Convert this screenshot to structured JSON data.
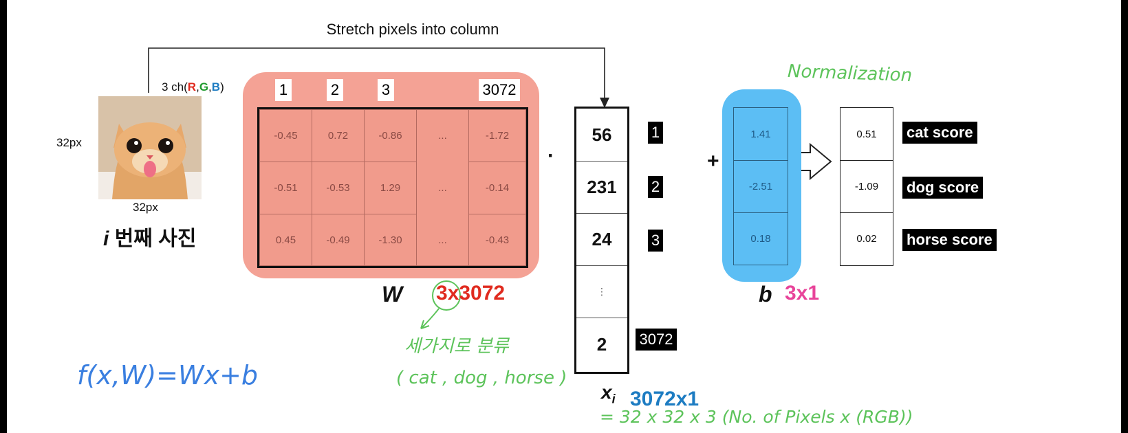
{
  "title": "Stretch pixels into column",
  "image": {
    "channels_prefix": "3 ch(",
    "ch_r": "R",
    "ch_g": "G",
    "ch_b": "B",
    "channels_suffix": ")",
    "height_label": "32px",
    "width_label": "32px",
    "caption_i": "i",
    "caption_text": "번째 사진"
  },
  "weights": {
    "col_labels": [
      "1",
      "2",
      "3",
      "3072"
    ],
    "rows": [
      [
        "-0.45",
        "0.72",
        "-0.86",
        "...",
        "-1.72"
      ],
      [
        "-0.51",
        "-0.53",
        "1.29",
        "...",
        "-0.14"
      ],
      [
        "0.45",
        "-0.49",
        "-1.30",
        "...",
        "-0.43"
      ]
    ],
    "symbol": "W",
    "dim_3": "3",
    "dim_rest": "x3072"
  },
  "dot": "·",
  "x": {
    "values": [
      "56",
      "231",
      "24",
      "⋮",
      "2"
    ],
    "indices": [
      "1",
      "2",
      "3",
      "3072"
    ],
    "symbol": "x",
    "subscript": "i",
    "dims": "3072x1"
  },
  "plus": "+",
  "bias": {
    "annotation": "Normalization",
    "values": [
      "1.41",
      "-2.51",
      "0.18"
    ],
    "symbol": "b",
    "dims": "3x1"
  },
  "scores": {
    "values": [
      "0.51",
      "-1.09",
      "0.02"
    ],
    "labels": [
      "cat score",
      "dog score",
      "horse score"
    ]
  },
  "notes": {
    "classes_kr": "세가지로 분류",
    "classes": "( cat , dog , horse )",
    "formula": "f(x,W)=Wx+b",
    "pixels": "= 32 x 32 x 3 (No. of Pixels x (RGB))"
  },
  "colors": {
    "weight_bg": "#f4a295",
    "bias_bg": "#5cbef4",
    "red": "#e02b1f",
    "green": "#1f9a2e",
    "blue": "#1d7cc2",
    "pink": "#e8449a",
    "hand_green": "#5cc35a",
    "hand_blue": "#3a7fe0"
  }
}
